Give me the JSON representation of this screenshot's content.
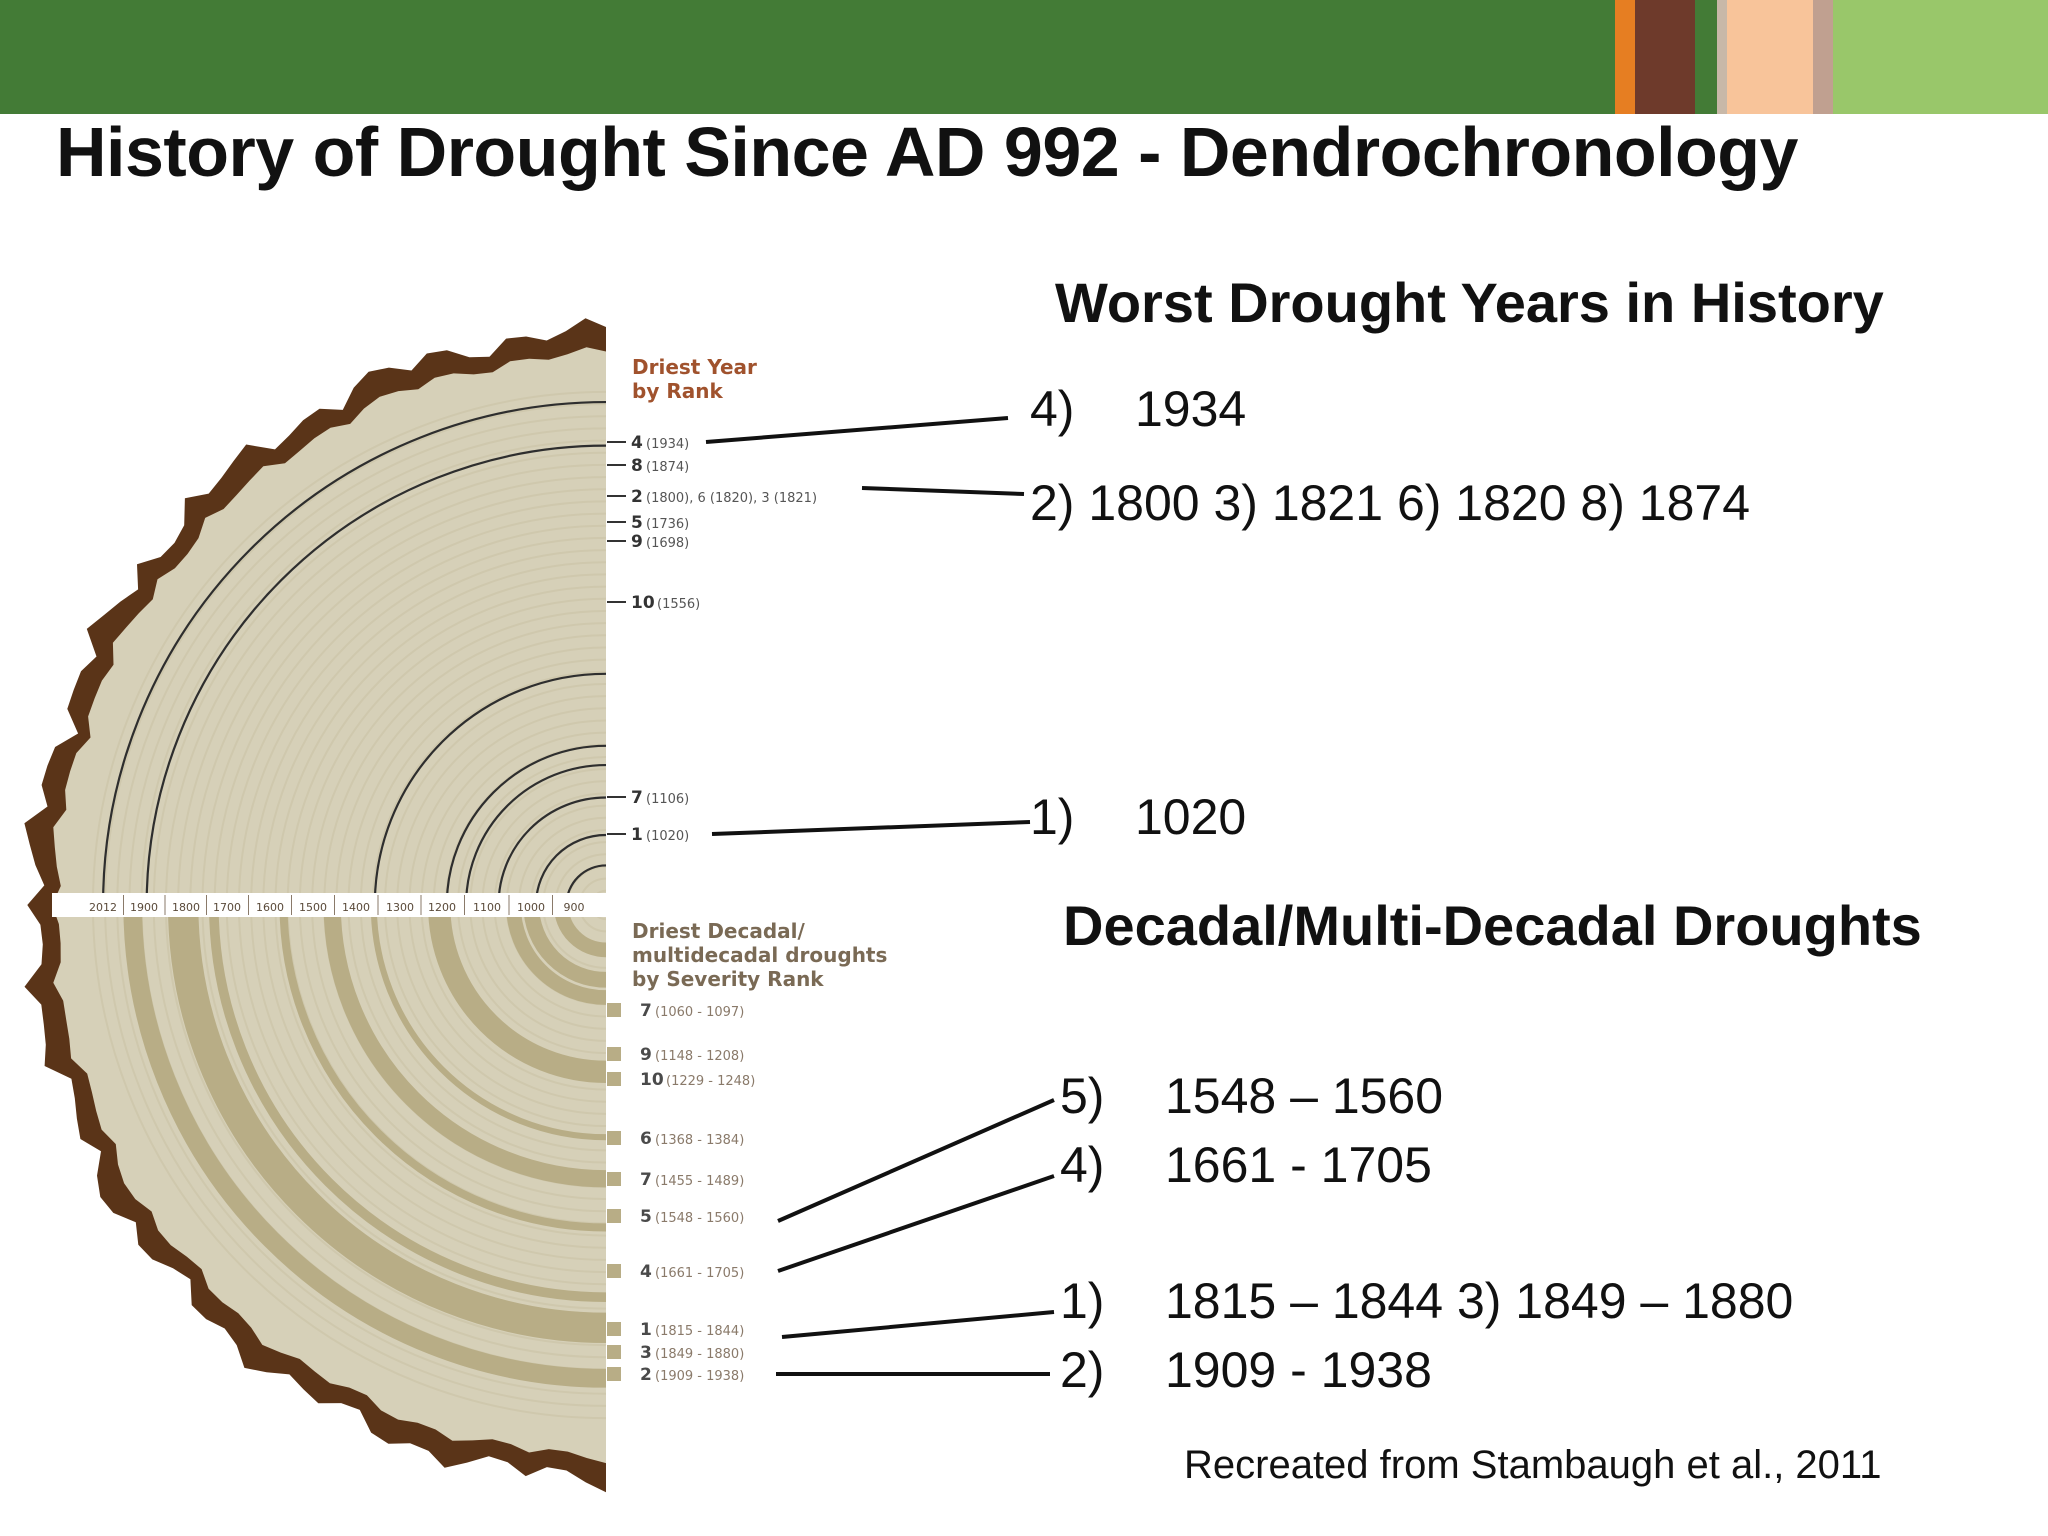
{
  "slide": {
    "title": "History of Drought Since AD 992 - Dendrochronology",
    "credit": "Recreated from Stambaugh et al., 2011"
  },
  "colors": {
    "header_green": "#437b36",
    "accent_orange": "#e67e22",
    "accent_brown": "#6e3a2b",
    "accent_peach": "#f8c49a",
    "accent_light_green": "#99c76a",
    "bark": "#5a3418",
    "wood": "#d6d0b8",
    "label_red": "#a0522d"
  },
  "worst_years": {
    "heading": "Worst Drought Years in History",
    "items": [
      {
        "label": "4)",
        "text": "1934"
      },
      {
        "label": "",
        "text": "2) 1800  3) 1821  6) 1820   8) 1874"
      },
      {
        "label": "1)",
        "text": "1020"
      }
    ]
  },
  "decadal": {
    "heading": "Decadal/Multi-Decadal Droughts",
    "items": [
      {
        "label": "5)",
        "text": "1548 – 1560"
      },
      {
        "label": "4)",
        "text": "1661 - 1705"
      },
      {
        "label": "1)",
        "text": "1815 – 1844  3) 1849 – 1880"
      },
      {
        "label": "2)",
        "text": "1909 - 1938"
      }
    ]
  },
  "diagram": {
    "top_heading": [
      "Driest Year",
      "by Rank"
    ],
    "bottom_heading": [
      "Driest Decadal/",
      "multidecadal droughts",
      "by Severity Rank"
    ],
    "scale_labels": [
      "2012",
      "1900",
      "1800",
      "1700",
      "1600",
      "1500",
      "1400",
      "1300",
      "1200",
      "1100",
      "1000",
      "900"
    ],
    "driest_years": [
      {
        "rank": "4",
        "years": "(1934)",
        "year": 1934
      },
      {
        "rank": "8",
        "years": "(1874)",
        "year": 1874
      },
      {
        "rank": "2",
        "years": "(1800), 6 (1820), 3 (1821)",
        "year": 1800
      },
      {
        "rank": "5",
        "years": "(1736)",
        "year": 1736
      },
      {
        "rank": "9",
        "years": "(1698)",
        "year": 1698
      },
      {
        "rank": "10",
        "years": "(1556)",
        "year": 1556
      },
      {
        "rank": "7",
        "years": "(1106)",
        "year": 1106
      },
      {
        "rank": "1",
        "years": "(1020)",
        "year": 1020
      }
    ],
    "decadal_droughts": [
      {
        "rank": "7",
        "years": "(1060 - 1097)",
        "start": 1060,
        "end": 1097
      },
      {
        "rank": "9",
        "years": "(1148 - 1208)",
        "start": 1148,
        "end": 1208
      },
      {
        "rank": "10",
        "years": "(1229 - 1248)",
        "start": 1229,
        "end": 1248
      },
      {
        "rank": "6",
        "years": "(1368 - 1384)",
        "start": 1368,
        "end": 1384
      },
      {
        "rank": "7",
        "years": "(1455 - 1489)",
        "start": 1455,
        "end": 1489
      },
      {
        "rank": "5",
        "years": "(1548 - 1560)",
        "start": 1548,
        "end": 1560
      },
      {
        "rank": "4",
        "years": "(1661 - 1705)",
        "start": 1661,
        "end": 1705
      },
      {
        "rank": "1",
        "years": "(1815 - 1844)",
        "start": 1815,
        "end": 1844
      },
      {
        "rank": "3",
        "years": "(1849 - 1880)",
        "start": 1849,
        "end": 1880
      },
      {
        "rank": "2",
        "years": "(1909 - 1938)",
        "start": 1909,
        "end": 1938
      }
    ]
  }
}
